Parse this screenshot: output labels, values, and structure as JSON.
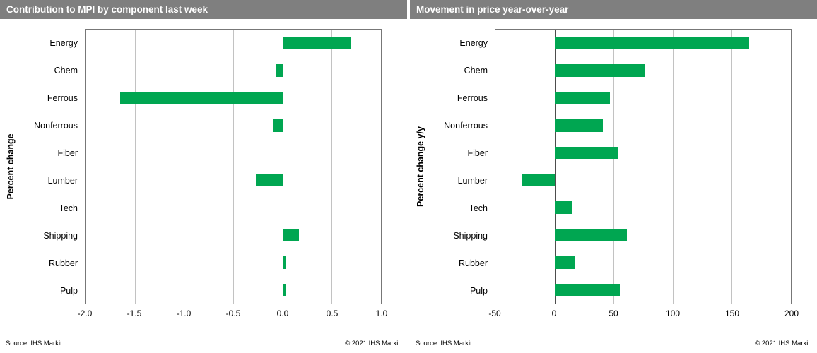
{
  "chart_data": [
    {
      "type": "bar",
      "orientation": "horizontal",
      "title": "Contribution to MPI by component last week",
      "ylabel": "Percent change",
      "categories": [
        "Energy",
        "Chem",
        "Ferrous",
        "Nonferrous",
        "Fiber",
        "Lumber",
        "Tech",
        "Shipping",
        "Rubber",
        "Pulp"
      ],
      "values": [
        0.7,
        -0.07,
        -1.65,
        -0.1,
        0.01,
        -0.27,
        0.01,
        0.17,
        0.04,
        0.03
      ],
      "xlim": [
        -2.0,
        1.0
      ],
      "xticks": [
        -2.0,
        -1.5,
        -1.0,
        -0.5,
        0.0,
        0.5,
        1.0
      ],
      "xtick_labels": [
        "-2.0",
        "-1.5",
        "-1.0",
        "-0.5",
        "0.0",
        "0.5",
        "1.0"
      ],
      "grid": "vertical",
      "legend": "none",
      "bar_color": "#00a651",
      "source": "Source:  IHS Markit",
      "copyright": "© 2021  IHS Markit"
    },
    {
      "type": "bar",
      "orientation": "horizontal",
      "title": "Movement in price year-over-year",
      "ylabel": "Percent change y/y",
      "categories": [
        "Energy",
        "Chem",
        "Ferrous",
        "Nonferrous",
        "Fiber",
        "Lumber",
        "Tech",
        "Shipping",
        "Rubber",
        "Pulp"
      ],
      "values": [
        165,
        77,
        47,
        41,
        54,
        -28,
        15,
        61,
        17,
        55
      ],
      "xlim": [
        -50,
        200
      ],
      "xticks": [
        -50,
        0,
        50,
        100,
        150,
        200
      ],
      "xtick_labels": [
        "-50",
        "0",
        "50",
        "100",
        "150",
        "200"
      ],
      "grid": "vertical",
      "legend": "none",
      "bar_color": "#00a651",
      "source": "Source:  IHS Markit",
      "copyright": "© 2021  IHS Markit"
    }
  ],
  "colors": {
    "bar_green": "#00a651",
    "title_bar_gray": "#7f7f7f",
    "gridline_gray": "#c2c2c2"
  }
}
